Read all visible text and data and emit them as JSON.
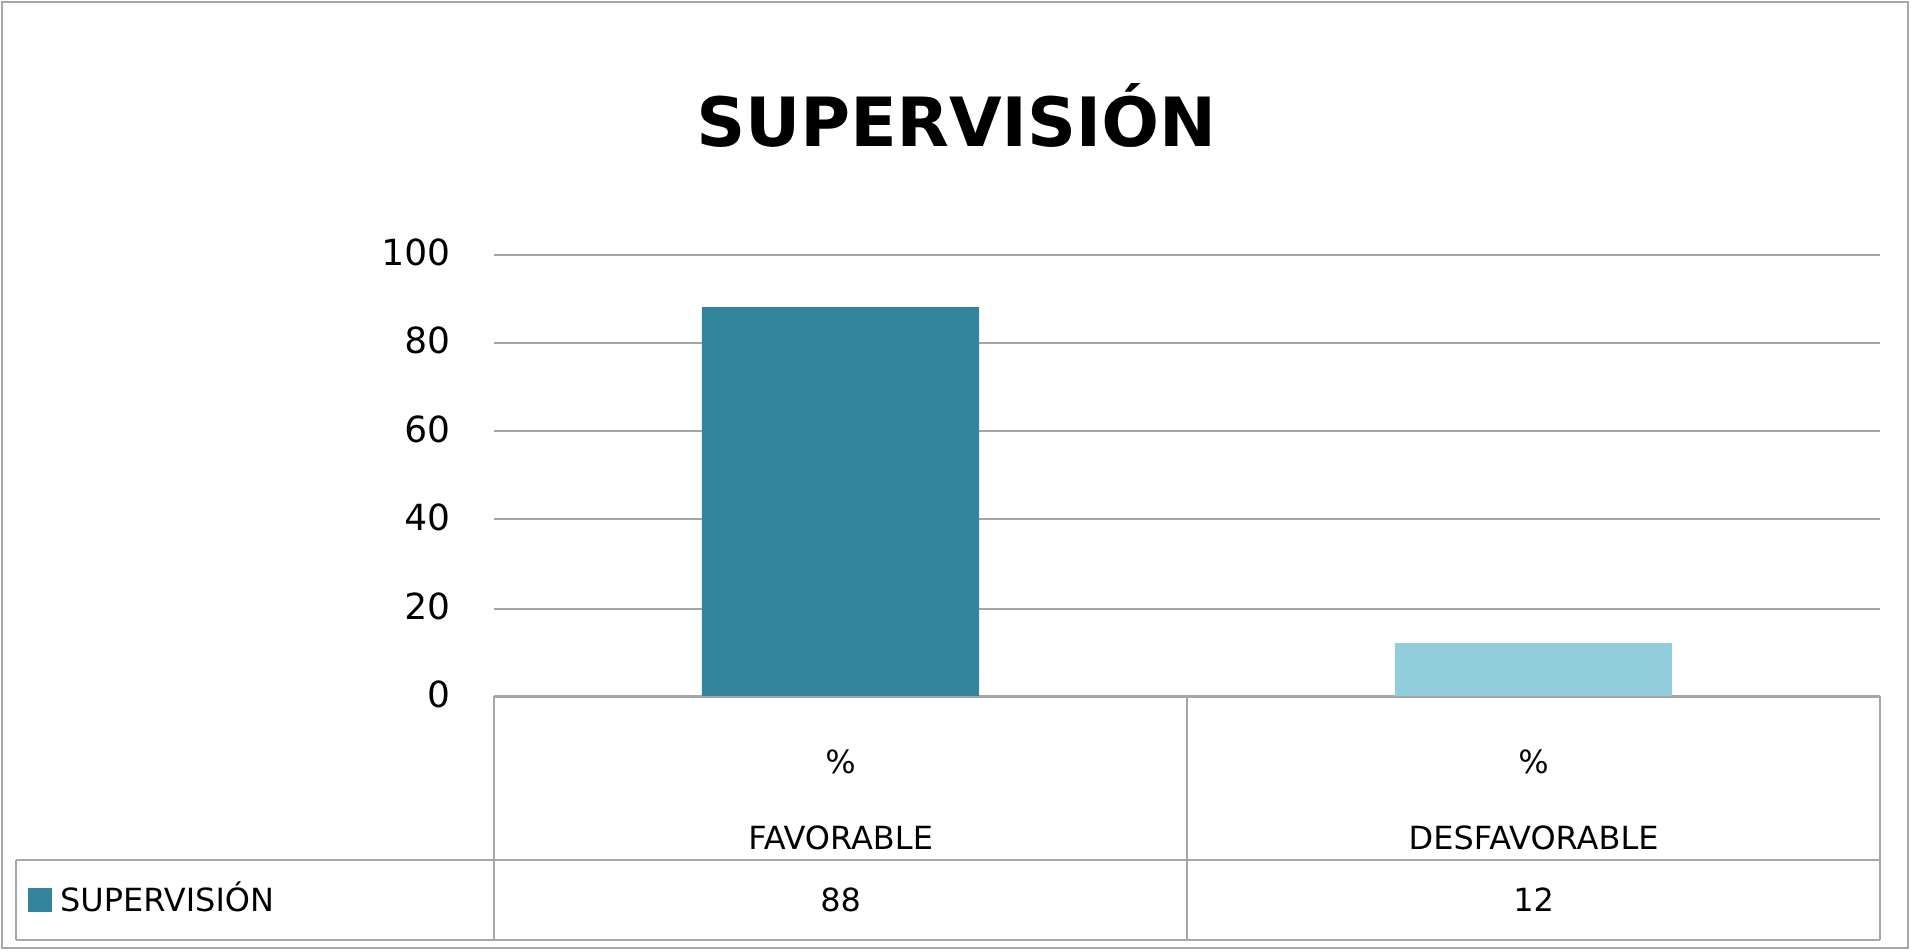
{
  "chart_data": {
    "type": "bar",
    "title": "SUPERVISIÓN",
    "categories": [
      "%\nFAVORABLE",
      "%\nDESFAVORABLE"
    ],
    "series": [
      {
        "name": "SUPERVISIÓN",
        "color": "#31849b",
        "colors": [
          "#31849b",
          "#92cddc"
        ],
        "values": [
          88,
          12
        ]
      }
    ],
    "ylim": [
      0,
      100
    ],
    "yticks": [
      0,
      20,
      40,
      60,
      80,
      100
    ],
    "grid": "y",
    "data_labels": true
  }
}
